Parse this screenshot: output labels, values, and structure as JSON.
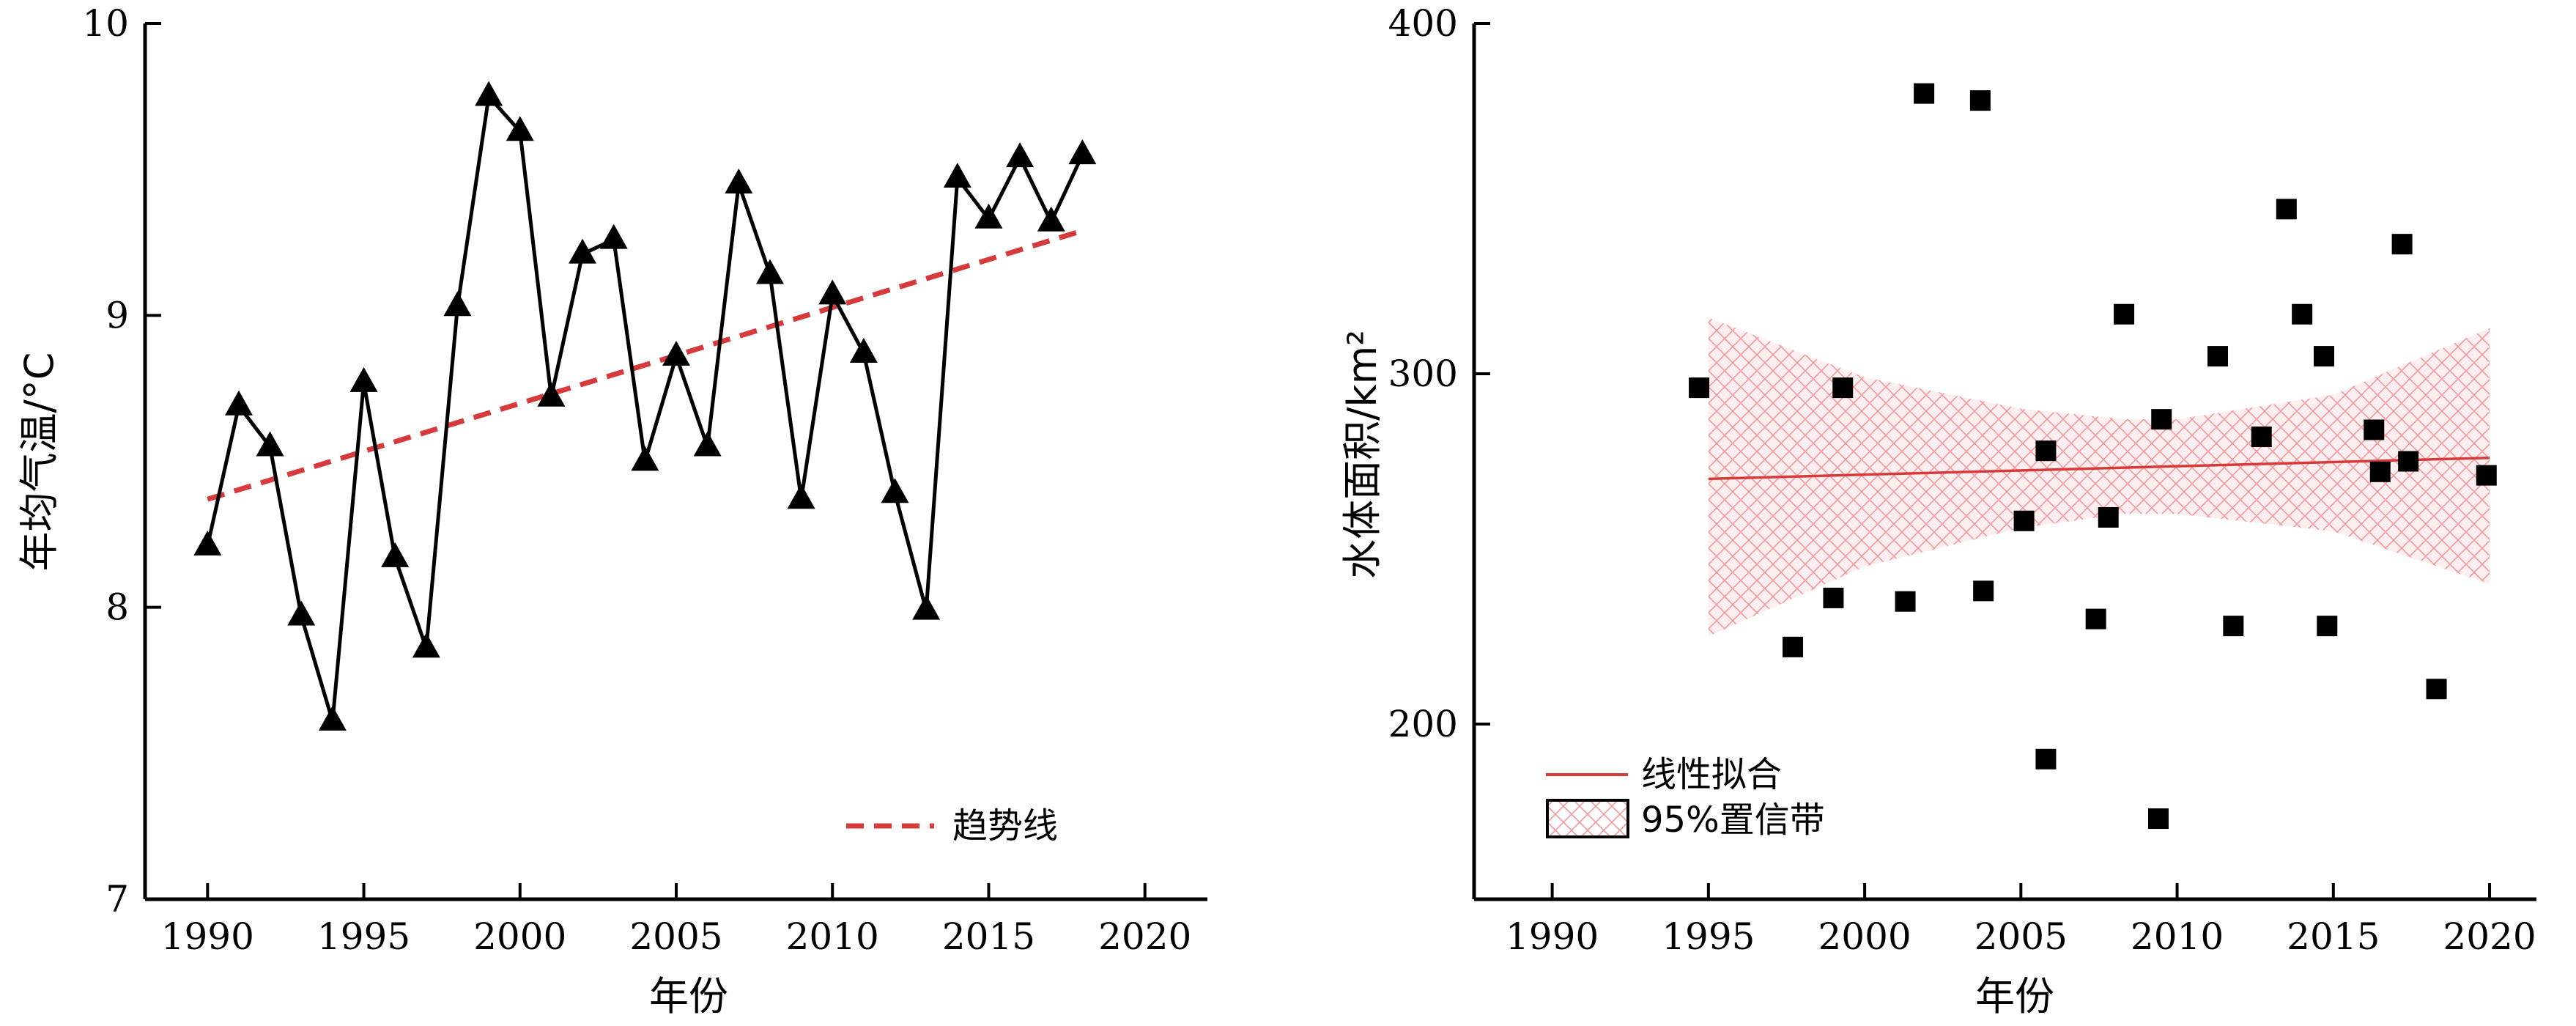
{
  "chart_data": [
    {
      "type": "line",
      "xlabel": "年份",
      "ylabel": "年均气温/°C",
      "xlim": [
        1988,
        2022
      ],
      "ylim": [
        7,
        10
      ],
      "xticks": [
        1990,
        1995,
        2000,
        2005,
        2010,
        2015,
        2020
      ],
      "yticks": [
        7,
        8,
        9,
        10
      ],
      "grid": false,
      "legend_position": "bottom-right",
      "series": [
        {
          "marker": "triangle",
          "color": "#000000",
          "x": [
            1990,
            1991,
            1992,
            1993,
            1994,
            1995,
            1996,
            1997,
            1998,
            1999,
            2000,
            2001,
            2002,
            2003,
            2004,
            2005,
            2006,
            2007,
            2008,
            2009,
            2010,
            2011,
            2012,
            2013,
            2014,
            2015,
            2016,
            2017,
            2018
          ],
          "y": [
            8.21,
            8.69,
            8.55,
            7.97,
            7.61,
            8.77,
            8.17,
            7.86,
            9.03,
            9.75,
            9.63,
            8.72,
            9.21,
            9.26,
            8.5,
            8.86,
            8.55,
            9.45,
            9.14,
            8.37,
            9.07,
            8.87,
            8.39,
            7.99,
            9.47,
            9.33,
            9.54,
            9.32,
            9.55
          ]
        },
        {
          "name": "趋势线",
          "style": "dashed",
          "color": "#d73a3a",
          "x": [
            1990,
            2018
          ],
          "y": [
            8.37,
            9.29
          ]
        }
      ]
    },
    {
      "type": "scatter",
      "xlabel": "年份",
      "ylabel": "水体面积/km²",
      "xlim": [
        1987.5,
        2021.5
      ],
      "ylim": [
        150,
        400
      ],
      "xticks": [
        1990,
        1995,
        2000,
        2005,
        2010,
        2015,
        2020
      ],
      "yticks": [
        200,
        300,
        400
      ],
      "grid": false,
      "legend_position": "bottom-left",
      "series": [
        {
          "marker": "square",
          "color": "#000000",
          "x": [
            1994.7,
            1997.7,
            1999.0,
            1999.3,
            2001.3,
            2001.9,
            2003.7,
            2003.8,
            2005.1,
            2005.8,
            2005.8,
            2007.4,
            2007.8,
            2008.3,
            2009.4,
            2009.5,
            2011.3,
            2011.8,
            2012.7,
            2013.5,
            2014.0,
            2014.7,
            2014.8,
            2016.3,
            2016.5,
            2017.2,
            2017.4,
            2018.3,
            2019.9
          ],
          "y": [
            296,
            222,
            236,
            296,
            235,
            380,
            378,
            238,
            258,
            278,
            190,
            230,
            259,
            317,
            173,
            287,
            305,
            228,
            282,
            347,
            317,
            305,
            228,
            284,
            272,
            337,
            275,
            210,
            271
          ]
        },
        {
          "name": "线性拟合",
          "style": "solid",
          "color": "#d73a3a",
          "x": [
            1995,
            2020
          ],
          "y": [
            270,
            276
          ]
        }
      ],
      "confidence_band": {
        "name": "95%置信带",
        "color": "#e8424a",
        "x": [
          1995,
          2000,
          2005,
          2008.3,
          2010,
          2015,
          2020
        ],
        "upper": [
          316,
          299,
          290,
          287,
          287,
          294,
          313
        ],
        "lower": [
          225,
          245,
          256,
          260,
          260,
          255,
          240
        ]
      }
    }
  ]
}
